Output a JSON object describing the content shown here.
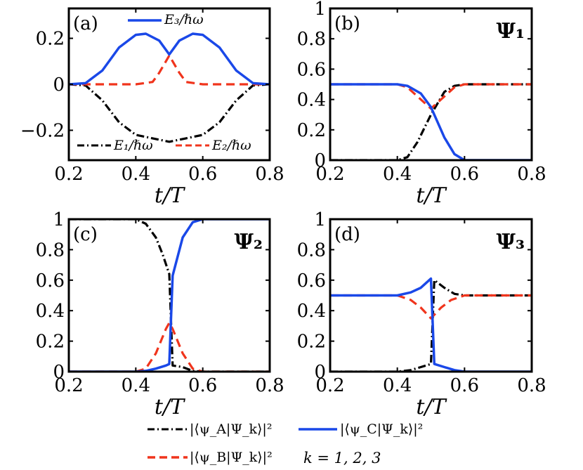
{
  "colors": {
    "black": "#000000",
    "blue": "#1a48e8",
    "red": "#f0341c"
  },
  "chart_data": [
    {
      "id": "a",
      "type": "line",
      "panel_label": "(a)",
      "state_label": "",
      "xlabel": "t/T",
      "ylabel": "",
      "xlim": [
        0.2,
        0.8
      ],
      "ylim": [
        -0.33,
        0.33
      ],
      "xticks": [
        0.2,
        0.4,
        0.6,
        0.8
      ],
      "xtick_labels": [
        "0.2",
        "0.4",
        "0.6",
        "0.8"
      ],
      "yticks": [
        -0.2,
        0,
        0.2
      ],
      "ytick_labels": [
        "−0.2",
        "0",
        "0.2"
      ],
      "legend_top": "E₃/ℏω",
      "legend_bottom_1": "E₁/ℏω",
      "legend_bottom_2": "E₂/ℏω",
      "series": [
        {
          "name": "E₁/ℏω",
          "style": "dashdot",
          "color": "black",
          "x": [
            0.2,
            0.25,
            0.3,
            0.35,
            0.4,
            0.45,
            0.5,
            0.55,
            0.6,
            0.65,
            0.7,
            0.75,
            0.8
          ],
          "y": [
            0,
            -0.005,
            -0.07,
            -0.165,
            -0.22,
            -0.235,
            -0.25,
            -0.235,
            -0.22,
            -0.165,
            -0.07,
            -0.005,
            0
          ]
        },
        {
          "name": "E₂/ℏω",
          "style": "dashed",
          "color": "red",
          "x": [
            0.2,
            0.4,
            0.45,
            0.47,
            0.49,
            0.5,
            0.51,
            0.53,
            0.55,
            0.6,
            0.8
          ],
          "y": [
            0,
            0,
            0.01,
            0.05,
            0.1,
            0.125,
            0.1,
            0.05,
            0.01,
            0,
            0
          ]
        },
        {
          "name": "E₃/ℏω",
          "style": "solid",
          "color": "blue",
          "x": [
            0.2,
            0.25,
            0.3,
            0.35,
            0.4,
            0.43,
            0.47,
            0.5,
            0.53,
            0.57,
            0.6,
            0.65,
            0.7,
            0.75,
            0.8
          ],
          "y": [
            0,
            0.005,
            0.06,
            0.16,
            0.215,
            0.22,
            0.19,
            0.13,
            0.19,
            0.22,
            0.215,
            0.16,
            0.06,
            0.005,
            0
          ]
        }
      ]
    },
    {
      "id": "b",
      "type": "line",
      "panel_label": "(b)",
      "state_label": "Ψ₁",
      "xlabel": "t/T",
      "ylabel": "",
      "xlim": [
        0.2,
        0.8
      ],
      "ylim": [
        0,
        1
      ],
      "xticks": [
        0.2,
        0.4,
        0.6,
        0.8
      ],
      "xtick_labels": [
        "0.2",
        "0.4",
        "0.6",
        "0.8"
      ],
      "yticks": [
        0,
        0.2,
        0.4,
        0.6,
        0.8,
        1
      ],
      "ytick_labels": [
        "0",
        "0.2",
        "0.4",
        "0.6",
        "0.8",
        "1"
      ],
      "series": [
        {
          "name": "|⟨ψA|Ψk⟩|²",
          "style": "dashdot",
          "color": "black",
          "x": [
            0.2,
            0.4,
            0.43,
            0.46,
            0.5,
            0.54,
            0.57,
            0.6,
            0.8
          ],
          "y": [
            0,
            0,
            0.02,
            0.12,
            0.3,
            0.45,
            0.49,
            0.5,
            0.5
          ]
        },
        {
          "name": "|⟨ψB|Ψk⟩|²",
          "style": "dashed",
          "color": "red",
          "x": [
            0.2,
            0.4,
            0.43,
            0.47,
            0.5,
            0.53,
            0.57,
            0.6,
            0.8
          ],
          "y": [
            0.5,
            0.5,
            0.48,
            0.4,
            0.34,
            0.4,
            0.48,
            0.5,
            0.5
          ]
        },
        {
          "name": "|⟨ψC|Ψk⟩|²",
          "style": "solid",
          "color": "blue",
          "x": [
            0.2,
            0.4,
            0.43,
            0.47,
            0.5,
            0.54,
            0.57,
            0.6,
            0.8
          ],
          "y": [
            0.5,
            0.5,
            0.49,
            0.44,
            0.35,
            0.15,
            0.04,
            0,
            0
          ]
        }
      ]
    },
    {
      "id": "c",
      "type": "line",
      "panel_label": "(c)",
      "state_label": "Ψ₂",
      "xlabel": "t/T",
      "ylabel": "",
      "xlim": [
        0.2,
        0.8
      ],
      "ylim": [
        0,
        1
      ],
      "xticks": [
        0.2,
        0.4,
        0.6,
        0.8
      ],
      "xtick_labels": [
        "0.2",
        "0.4",
        "0.6",
        "0.8"
      ],
      "yticks": [
        0,
        0.2,
        0.4,
        0.6,
        0.8,
        1
      ],
      "ytick_labels": [
        "0",
        "0.2",
        "0.4",
        "0.6",
        "0.8",
        "1"
      ],
      "series": [
        {
          "name": "|⟨ψA|Ψk⟩|²",
          "style": "dashdot",
          "color": "black",
          "x": [
            0.2,
            0.4,
            0.43,
            0.46,
            0.48,
            0.5,
            0.51,
            0.54,
            0.57,
            0.6,
            0.8
          ],
          "y": [
            1,
            1,
            0.97,
            0.88,
            0.77,
            0.64,
            0.04,
            0.03,
            0.005,
            0,
            0
          ]
        },
        {
          "name": "|⟨ψB|Ψk⟩|²",
          "style": "dashed",
          "color": "red",
          "x": [
            0.2,
            0.4,
            0.43,
            0.46,
            0.49,
            0.5,
            0.51,
            0.54,
            0.57,
            0.6,
            0.8
          ],
          "y": [
            0,
            0,
            0.02,
            0.12,
            0.28,
            0.32,
            0.28,
            0.12,
            0.02,
            0,
            0
          ]
        },
        {
          "name": "|⟨ψC|Ψk⟩|²",
          "style": "solid",
          "color": "blue",
          "x": [
            0.2,
            0.4,
            0.43,
            0.46,
            0.49,
            0.5,
            0.51,
            0.54,
            0.57,
            0.6,
            0.8
          ],
          "y": [
            0,
            0,
            0.005,
            0.02,
            0.04,
            0.05,
            0.63,
            0.88,
            0.98,
            1,
            1
          ]
        }
      ]
    },
    {
      "id": "d",
      "type": "line",
      "panel_label": "(d)",
      "state_label": "Ψ₃",
      "xlabel": "t/T",
      "ylabel": "",
      "xlim": [
        0.2,
        0.8
      ],
      "ylim": [
        0,
        1
      ],
      "xticks": [
        0.2,
        0.4,
        0.6,
        0.8
      ],
      "xtick_labels": [
        "0.2",
        "0.4",
        "0.6",
        "0.8"
      ],
      "yticks": [
        0,
        0.2,
        0.4,
        0.6,
        0.8,
        1
      ],
      "ytick_labels": [
        "0",
        "0.2",
        "0.4",
        "0.6",
        "0.8",
        "1"
      ],
      "series": [
        {
          "name": "|⟨ψA|Ψk⟩|²",
          "style": "dashdot",
          "color": "black",
          "x": [
            0.2,
            0.4,
            0.44,
            0.47,
            0.5,
            0.51,
            0.54,
            0.57,
            0.6,
            0.8
          ],
          "y": [
            0,
            0,
            0.01,
            0.03,
            0.05,
            0.6,
            0.55,
            0.51,
            0.5,
            0.5
          ]
        },
        {
          "name": "|⟨ψB|Ψk⟩|²",
          "style": "dashed",
          "color": "red",
          "x": [
            0.2,
            0.4,
            0.44,
            0.47,
            0.5,
            0.53,
            0.56,
            0.6,
            0.8
          ],
          "y": [
            0.5,
            0.5,
            0.47,
            0.42,
            0.35,
            0.42,
            0.47,
            0.5,
            0.5
          ]
        },
        {
          "name": "|⟨ψC|Ψk⟩|²",
          "style": "solid",
          "color": "blue",
          "x": [
            0.2,
            0.4,
            0.44,
            0.47,
            0.5,
            0.51,
            0.54,
            0.57,
            0.6,
            0.8
          ],
          "y": [
            0.5,
            0.5,
            0.52,
            0.55,
            0.61,
            0.05,
            0.03,
            0.01,
            0,
            0
          ]
        }
      ]
    }
  ],
  "legend": {
    "entries": [
      {
        "label": "|⟨ψ_A|Ψ_k⟩|²",
        "style": "dashdot",
        "color": "black"
      },
      {
        "label": "|⟨ψ_C|Ψ_k⟩|²",
        "style": "solid",
        "color": "blue"
      },
      {
        "label": "|⟨ψ_B|Ψ_k⟩|²",
        "style": "dashed",
        "color": "red"
      }
    ],
    "note": "k = 1, 2, 3"
  }
}
